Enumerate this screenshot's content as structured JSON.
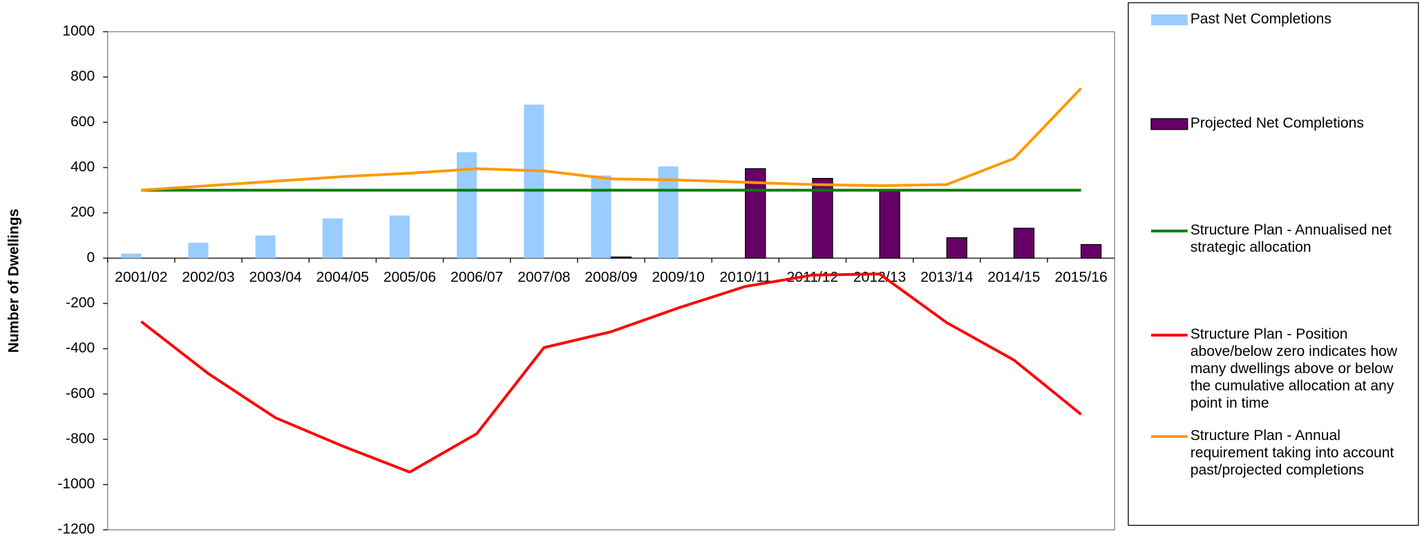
{
  "chart_data": {
    "type": "bar",
    "y_label": "Number of Dwellings",
    "categories": [
      "2001/02",
      "2002/03",
      "2003/04",
      "2004/05",
      "2005/06",
      "2006/07",
      "2007/08",
      "2008/09",
      "2009/10",
      "2010/11",
      "2011/12",
      "2012/13",
      "2013/14",
      "2014/15",
      "2015/16"
    ],
    "ylim": [
      -1200,
      1000
    ],
    "yticks": [
      -1200,
      -1000,
      -800,
      -600,
      -400,
      -200,
      0,
      200,
      400,
      600,
      800,
      1000
    ],
    "series": [
      {
        "name": "Past Net Completions",
        "type": "bar",
        "color": "#99ccff",
        "values": [
          20,
          68,
          100,
          175,
          188,
          468,
          678,
          365,
          405,
          null,
          null,
          null,
          null,
          null,
          null
        ]
      },
      {
        "name": "Projected Net Completions",
        "type": "bar",
        "color": "#660066",
        "values": [
          null,
          null,
          null,
          null,
          null,
          null,
          null,
          5,
          null,
          395,
          352,
          300,
          90,
          132,
          60
        ]
      },
      {
        "name": "Structure Plan - Annualised net strategic allocation",
        "type": "line",
        "color": "#008000",
        "values": [
          300,
          300,
          300,
          300,
          300,
          300,
          300,
          300,
          300,
          300,
          300,
          300,
          300,
          300,
          300
        ]
      },
      {
        "name": "Structure Plan - Position above/below zero indicates how many dwellings above or below the cumulative allocation at any point in time",
        "type": "line",
        "color": "#ff0000",
        "values": [
          -280,
          -510,
          -705,
          -830,
          -945,
          -775,
          -395,
          -325,
          -220,
          -125,
          -75,
          -70,
          -285,
          -450,
          -690
        ]
      },
      {
        "name": "Structure Plan - Annual requirement taking into account past/projected completions",
        "type": "line",
        "color": "#ff9900",
        "values": [
          300,
          320,
          340,
          360,
          375,
          395,
          385,
          350,
          345,
          335,
          325,
          320,
          325,
          440,
          750
        ]
      }
    ]
  }
}
